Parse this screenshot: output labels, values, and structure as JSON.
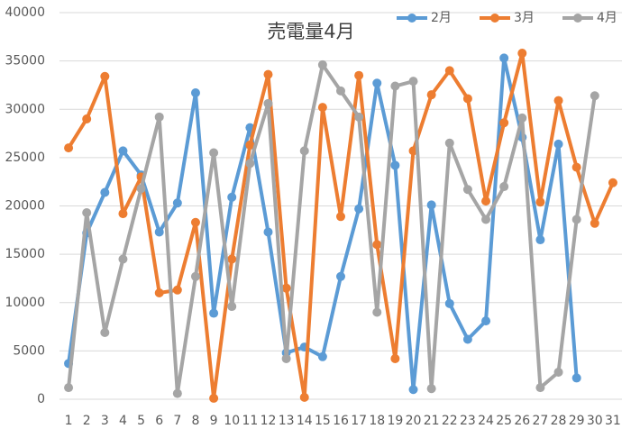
{
  "chart_data": {
    "type": "line",
    "title": "売電量4月",
    "categories": [
      "1",
      "2",
      "3",
      "4",
      "5",
      "6",
      "7",
      "8",
      "9",
      "10",
      "11",
      "12",
      "13",
      "14",
      "15",
      "16",
      "17",
      "18",
      "19",
      "20",
      "21",
      "22",
      "23",
      "24",
      "25",
      "26",
      "27",
      "28",
      "29",
      "30",
      "31"
    ],
    "series": [
      {
        "name": "2月",
        "color": "#5b9bd5",
        "values": [
          3700,
          17200,
          21400,
          25700,
          23200,
          17300,
          20300,
          31700,
          8900,
          20900,
          28100,
          17300,
          4800,
          5400,
          4400,
          12700,
          19700,
          32700,
          24200,
          1000,
          20100,
          9900,
          6200,
          8100,
          35300,
          27100,
          16500,
          26400,
          2200,
          null,
          null
        ]
      },
      {
        "name": "3月",
        "color": "#ed7d31",
        "values": [
          26000,
          29000,
          33400,
          19200,
          23000,
          11000,
          11300,
          18300,
          100,
          14500,
          26300,
          33600,
          11500,
          200,
          30200,
          18900,
          33500,
          16000,
          4200,
          25700,
          31500,
          34000,
          31100,
          20500,
          28600,
          35800,
          20400,
          30900,
          24000,
          18200,
          22400
        ]
      },
      {
        "name": "4月",
        "color": "#a5a5a5",
        "values": [
          1200,
          19300,
          6900,
          14500,
          21800,
          29200,
          600,
          12700,
          25500,
          9600,
          24400,
          30600,
          4200,
          25700,
          34600,
          31900,
          29200,
          9000,
          32400,
          32900,
          1100,
          26500,
          21700,
          18600,
          22000,
          29100,
          1200,
          2800,
          18600,
          31400,
          null
        ]
      }
    ],
    "ylim": [
      0,
      40000
    ],
    "yticks": [
      0,
      5000,
      10000,
      15000,
      20000,
      25000,
      30000,
      35000,
      40000
    ],
    "grid": true,
    "legend": "top-right"
  }
}
